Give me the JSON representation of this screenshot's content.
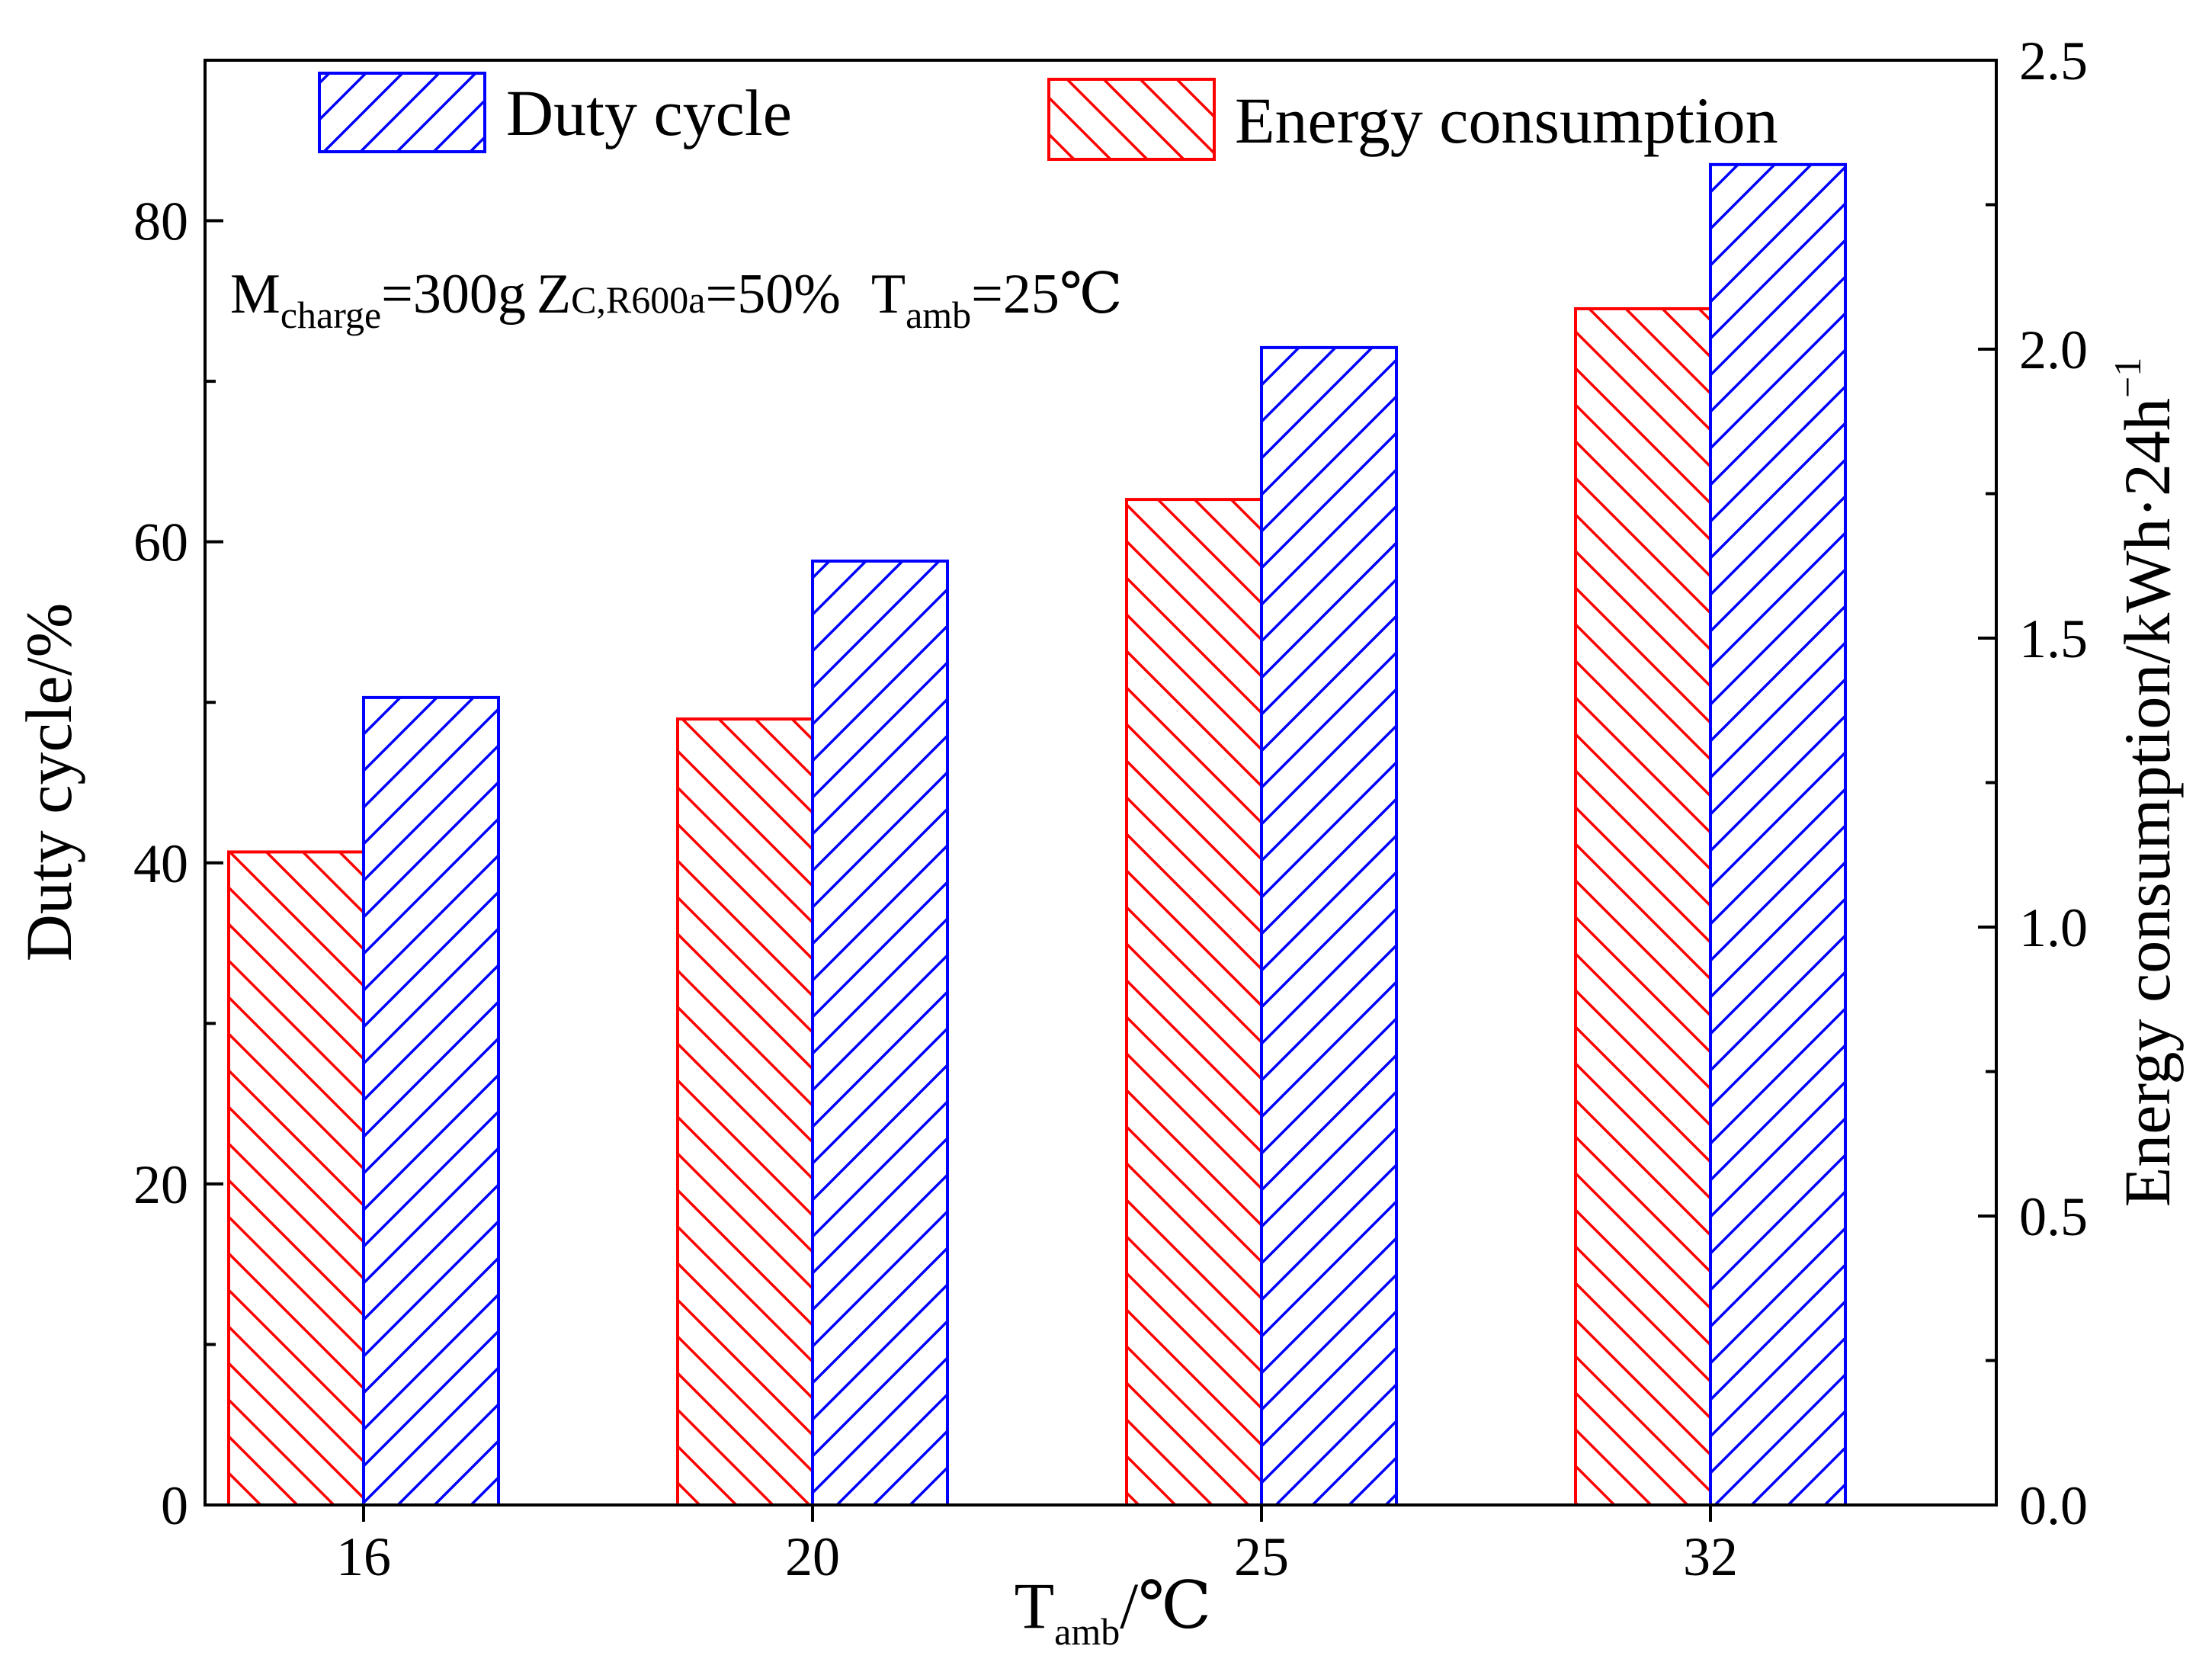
{
  "chart_data": {
    "type": "bar",
    "categories": [
      "16",
      "20",
      "25",
      "32"
    ],
    "series": [
      {
        "name": "Energy consumption",
        "axis": "right",
        "color": "#ff0000",
        "hatch": "backslash",
        "values": [
          1.13,
          1.36,
          1.74,
          2.07
        ]
      },
      {
        "name": "Duty cycle",
        "axis": "left",
        "color": "#0000ff",
        "hatch": "slash",
        "values": [
          50.3,
          58.8,
          72.1,
          83.5
        ]
      }
    ],
    "y_left": {
      "label": "Duty cycle/%",
      "ylim": [
        0,
        90
      ],
      "ticks": [
        0,
        20,
        40,
        60,
        80
      ],
      "minor_ticks": [
        10,
        30,
        50,
        70
      ]
    },
    "y_right": {
      "label": "Energy consumption/kWh·24h",
      "label_sup": "−1",
      "ylim": [
        0,
        2.5
      ],
      "ticks": [
        "0.0",
        "0.5",
        "1.0",
        "1.5",
        "2.0",
        "2.5"
      ],
      "minor_ticks": [
        0.25,
        0.75,
        1.25,
        1.75,
        2.25
      ]
    },
    "x_axis": {
      "label_main": "T",
      "label_sub": "amb",
      "label_suffix": "/℃"
    },
    "legend": {
      "position": "top",
      "entries": [
        "Duty cycle",
        "Energy consumption"
      ]
    },
    "annotation": {
      "m": "M",
      "m_sub": "charge",
      "m_val": "=300g",
      "z": "Z",
      "z_sub": "C,R600a",
      "z_val": "=50%",
      "t": "T",
      "t_sub": "amb",
      "t_val": "=25℃"
    },
    "grid": false
  }
}
